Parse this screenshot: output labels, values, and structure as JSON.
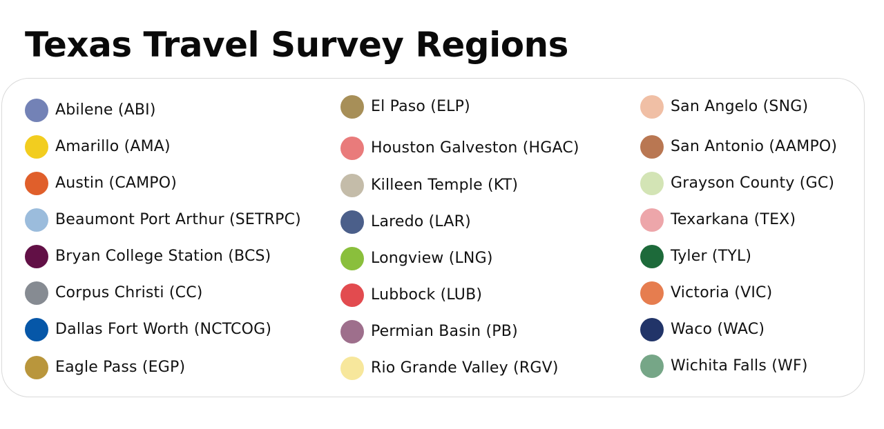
{
  "title": "Texas Travel Survey Regions",
  "legend": {
    "columns": [
      [
        {
          "label": "Abilene (ABI)",
          "color": "#7382b6"
        },
        {
          "label": "Amarillo (AMA)",
          "color": "#f2cd1f"
        },
        {
          "label": "Austin (CAMPO)",
          "color": "#e05f2b"
        },
        {
          "label": "Beaumont Port Arthur (SETRPC)",
          "color": "#9bbcdc"
        },
        {
          "label": "Bryan College Station (BCS)",
          "color": "#621046"
        },
        {
          "label": "Corpus Christi (CC)",
          "color": "#868b92"
        },
        {
          "label": "Dallas Fort Worth (NCTCOG)",
          "color": "#0657a8"
        },
        {
          "label": "Eagle Pass (EGP)",
          "color": "#b9963c"
        }
      ],
      [
        {
          "label": "El Paso (ELP)",
          "color": "#a78f58"
        },
        {
          "label": "Houston Galveston (HGAC)",
          "color": "#e97b7b"
        },
        {
          "label": "Killeen Temple (KT)",
          "color": "#c4bca9"
        },
        {
          "label": "Laredo (LAR)",
          "color": "#4b5f8a"
        },
        {
          "label": "Longview (LNG)",
          "color": "#8abf3c"
        },
        {
          "label": "Lubbock (LUB)",
          "color": "#e24b4f"
        },
        {
          "label": "Permian Basin (PB)",
          "color": "#9e6f8c"
        },
        {
          "label": "Rio Grande Valley (RGV)",
          "color": "#f7e79c"
        }
      ],
      [
        {
          "label": "San Angelo (SNG)",
          "color": "#f0bfa5"
        },
        {
          "label": "San Antonio (AAMPO)",
          "color": "#b97752"
        },
        {
          "label": "Grayson County (GC)",
          "color": "#d3e4b5"
        },
        {
          "label": "Texarkana (TEX)",
          "color": "#eda6aa"
        },
        {
          "label": "Tyler (TYL)",
          "color": "#1d6a3a"
        },
        {
          "label": "Victoria (VIC)",
          "color": "#e67d4f"
        },
        {
          "label": "Waco (WAC)",
          "color": "#213468"
        },
        {
          "label": "Wichita Falls (WF)",
          "color": "#76a687"
        }
      ]
    ]
  }
}
